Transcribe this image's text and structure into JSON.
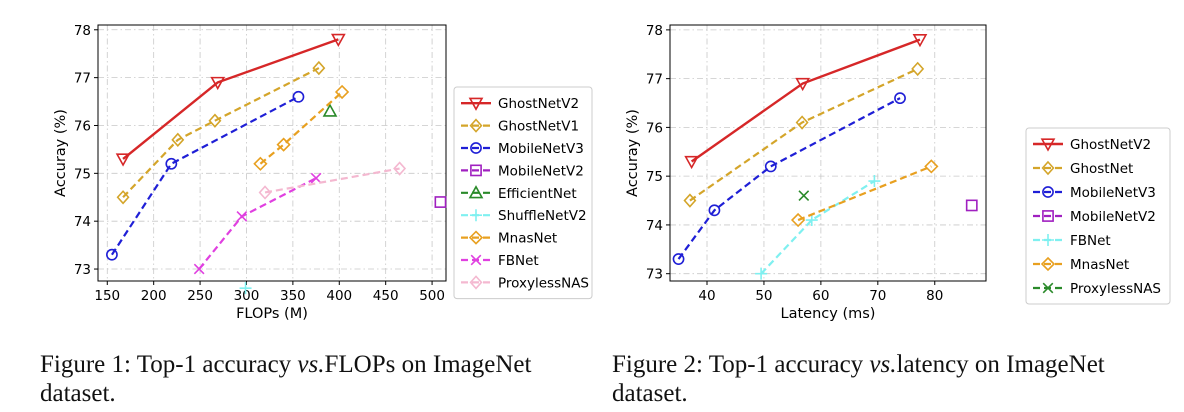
{
  "colors": {
    "ghost_v2": "#d62728",
    "ghost": "#d4a52a",
    "mobilev3": "#1f1fd6",
    "mobilev2": "#a020c0",
    "efficient": "#2a8a2a",
    "shuffle": "#7ff0f0",
    "mnas": "#e8a020",
    "fbnet": "#e040e0",
    "proxyless": "#f4b8d0"
  },
  "captions": [
    {
      "prefix": "Figure 1: Top-1 accuracy ",
      "em": "vs.",
      "suffix": "FLOPs on ImageNet",
      "line2": "dataset."
    },
    {
      "prefix": "Figure 2: Top-1 accuracy ",
      "em": "vs.",
      "suffix": "latency on ImageNet",
      "line2": "dataset."
    }
  ],
  "chart_data": [
    {
      "type": "line",
      "title": "",
      "xlabel": "FLOPs (M)",
      "ylabel": "Accuray (%)",
      "xlim": [
        140,
        515
      ],
      "ylim": [
        72.75,
        78.1
      ],
      "xticks": [
        150,
        200,
        250,
        300,
        350,
        400,
        450,
        500
      ],
      "yticks": [
        73,
        74,
        75,
        76,
        77,
        78
      ],
      "legend": "right",
      "series": [
        {
          "name": "GhostNetV2",
          "color": "#d62728",
          "marker": "tri_down",
          "dash": "solid",
          "width": 2.4,
          "x": [
            167,
            269,
            399
          ],
          "y": [
            75.3,
            76.9,
            77.8
          ]
        },
        {
          "name": "GhostNetV1",
          "color": "#d4a52a",
          "marker": "diamond",
          "dash": "dashed",
          "width": 2.2,
          "x": [
            167,
            226,
            266,
            378
          ],
          "y": [
            74.5,
            75.7,
            76.1,
            77.2
          ]
        },
        {
          "name": "MobileNetV3",
          "color": "#1f1fd6",
          "marker": "circle",
          "dash": "dashed",
          "width": 2.2,
          "x": [
            155,
            219,
            356
          ],
          "y": [
            73.3,
            75.2,
            76.6
          ]
        },
        {
          "name": "MobileNetV2",
          "color": "#a020c0",
          "marker": "square",
          "dash": "dashed",
          "width": 2.2,
          "x": [
            509
          ],
          "y": [
            74.4
          ]
        },
        {
          "name": "EfficientNet",
          "color": "#2a8a2a",
          "marker": "tri_up",
          "dash": "dashed",
          "width": 2.2,
          "x": [
            390
          ],
          "y": [
            76.3
          ]
        },
        {
          "name": "ShuffleNetV2",
          "color": "#7ff0f0",
          "marker": "plus",
          "dash": "dashed",
          "width": 2.2,
          "x": [
            299
          ],
          "y": [
            72.6
          ]
        },
        {
          "name": "MnasNet",
          "color": "#e8a020",
          "marker": "hexagon",
          "dash": "dashed",
          "width": 2.2,
          "x": [
            315,
            340,
            403
          ],
          "y": [
            75.2,
            75.6,
            76.7
          ]
        },
        {
          "name": "FBNet",
          "color": "#e040e0",
          "marker": "x",
          "dash": "dashed",
          "width": 2.2,
          "x": [
            249,
            295,
            375
          ],
          "y": [
            73.0,
            74.1,
            74.9
          ]
        },
        {
          "name": "ProxylessNAS",
          "color": "#f4b8d0",
          "marker": "diamond",
          "dash": "dashed",
          "width": 2.2,
          "x": [
            320,
            465
          ],
          "y": [
            74.6,
            75.1
          ]
        }
      ]
    },
    {
      "type": "line",
      "title": "",
      "xlabel": "Latency (ms)",
      "ylabel": "Accuray (%)",
      "xlim": [
        33.5,
        89
      ],
      "ylim": [
        72.85,
        78.1
      ],
      "xticks": [
        40,
        50,
        60,
        70,
        80
      ],
      "yticks": [
        73,
        74,
        75,
        76,
        77,
        78
      ],
      "legend": "right",
      "series": [
        {
          "name": "GhostNetV2",
          "color": "#d62728",
          "marker": "tri_down",
          "dash": "solid",
          "width": 2.4,
          "x": [
            37.3,
            56.8,
            77.4
          ],
          "y": [
            75.3,
            76.9,
            77.8
          ]
        },
        {
          "name": "GhostNet",
          "color": "#d4a52a",
          "marker": "diamond",
          "dash": "dashed",
          "width": 2.2,
          "x": [
            37.0,
            56.7,
            77.0
          ],
          "y": [
            74.5,
            76.1,
            77.2
          ]
        },
        {
          "name": "MobileNetV3",
          "color": "#1f1fd6",
          "marker": "circle",
          "dash": "dashed",
          "width": 2.2,
          "x": [
            35.0,
            41.3,
            51.2,
            73.9
          ],
          "y": [
            73.3,
            74.3,
            75.2,
            76.6
          ]
        },
        {
          "name": "MobileNetV2",
          "color": "#a020c0",
          "marker": "square",
          "dash": "dashed",
          "width": 2.2,
          "x": [
            86.5
          ],
          "y": [
            74.4
          ]
        },
        {
          "name": "FBNet",
          "color": "#7ff0f0",
          "marker": "plus",
          "dash": "dashed",
          "width": 2.2,
          "x": [
            49.5,
            58.4,
            69.4
          ],
          "y": [
            73.0,
            74.1,
            74.9
          ]
        },
        {
          "name": "MnasNet",
          "color": "#e8a020",
          "marker": "hexagon",
          "dash": "dashed",
          "width": 2.2,
          "x": [
            56.0,
            79.4
          ],
          "y": [
            74.1,
            75.2
          ]
        },
        {
          "name": "ProxylessNAS",
          "color": "#2a8a2a",
          "marker": "x",
          "dash": "dashed",
          "width": 2.2,
          "x": [
            57.0
          ],
          "y": [
            74.6
          ]
        }
      ]
    }
  ]
}
